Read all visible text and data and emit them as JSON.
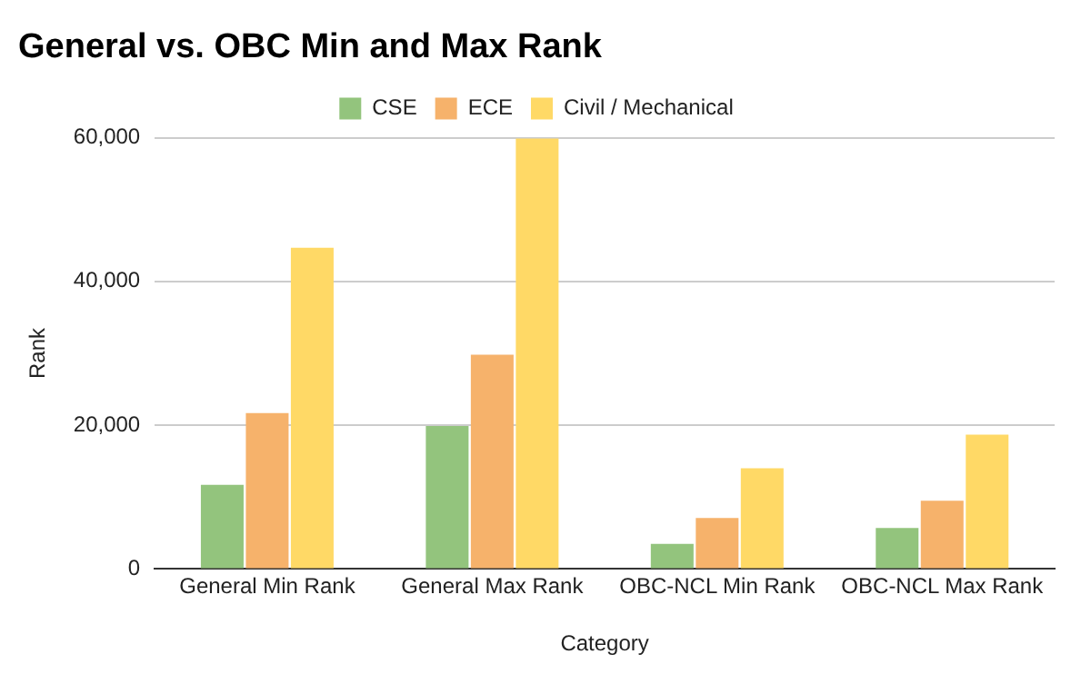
{
  "chart_data": {
    "type": "bar",
    "title": "General vs. OBC Min and Max Rank",
    "xlabel": "Category",
    "ylabel": "Rank",
    "categories": [
      "General Min Rank",
      "General Max Rank",
      "OBC-NCL Min Rank",
      "OBC-NCL Max Rank"
    ],
    "series": [
      {
        "name": "CSE",
        "color": "#93c47d",
        "values": [
          11700,
          19900,
          3500,
          5700
        ]
      },
      {
        "name": "ECE",
        "color": "#f6b26b",
        "values": [
          21700,
          29800,
          7100,
          9500
        ]
      },
      {
        "name": "Civil / Mechanical",
        "color": "#ffd966",
        "values": [
          44700,
          59900,
          14000,
          18700
        ]
      }
    ],
    "ylim": [
      0,
      60000
    ],
    "yticks": [
      {
        "value": 0,
        "label": "0"
      },
      {
        "value": 20000,
        "label": "20,000"
      },
      {
        "value": 40000,
        "label": "40,000"
      },
      {
        "value": 60000,
        "label": "60,000"
      }
    ],
    "grid": "y",
    "legend": "top"
  }
}
